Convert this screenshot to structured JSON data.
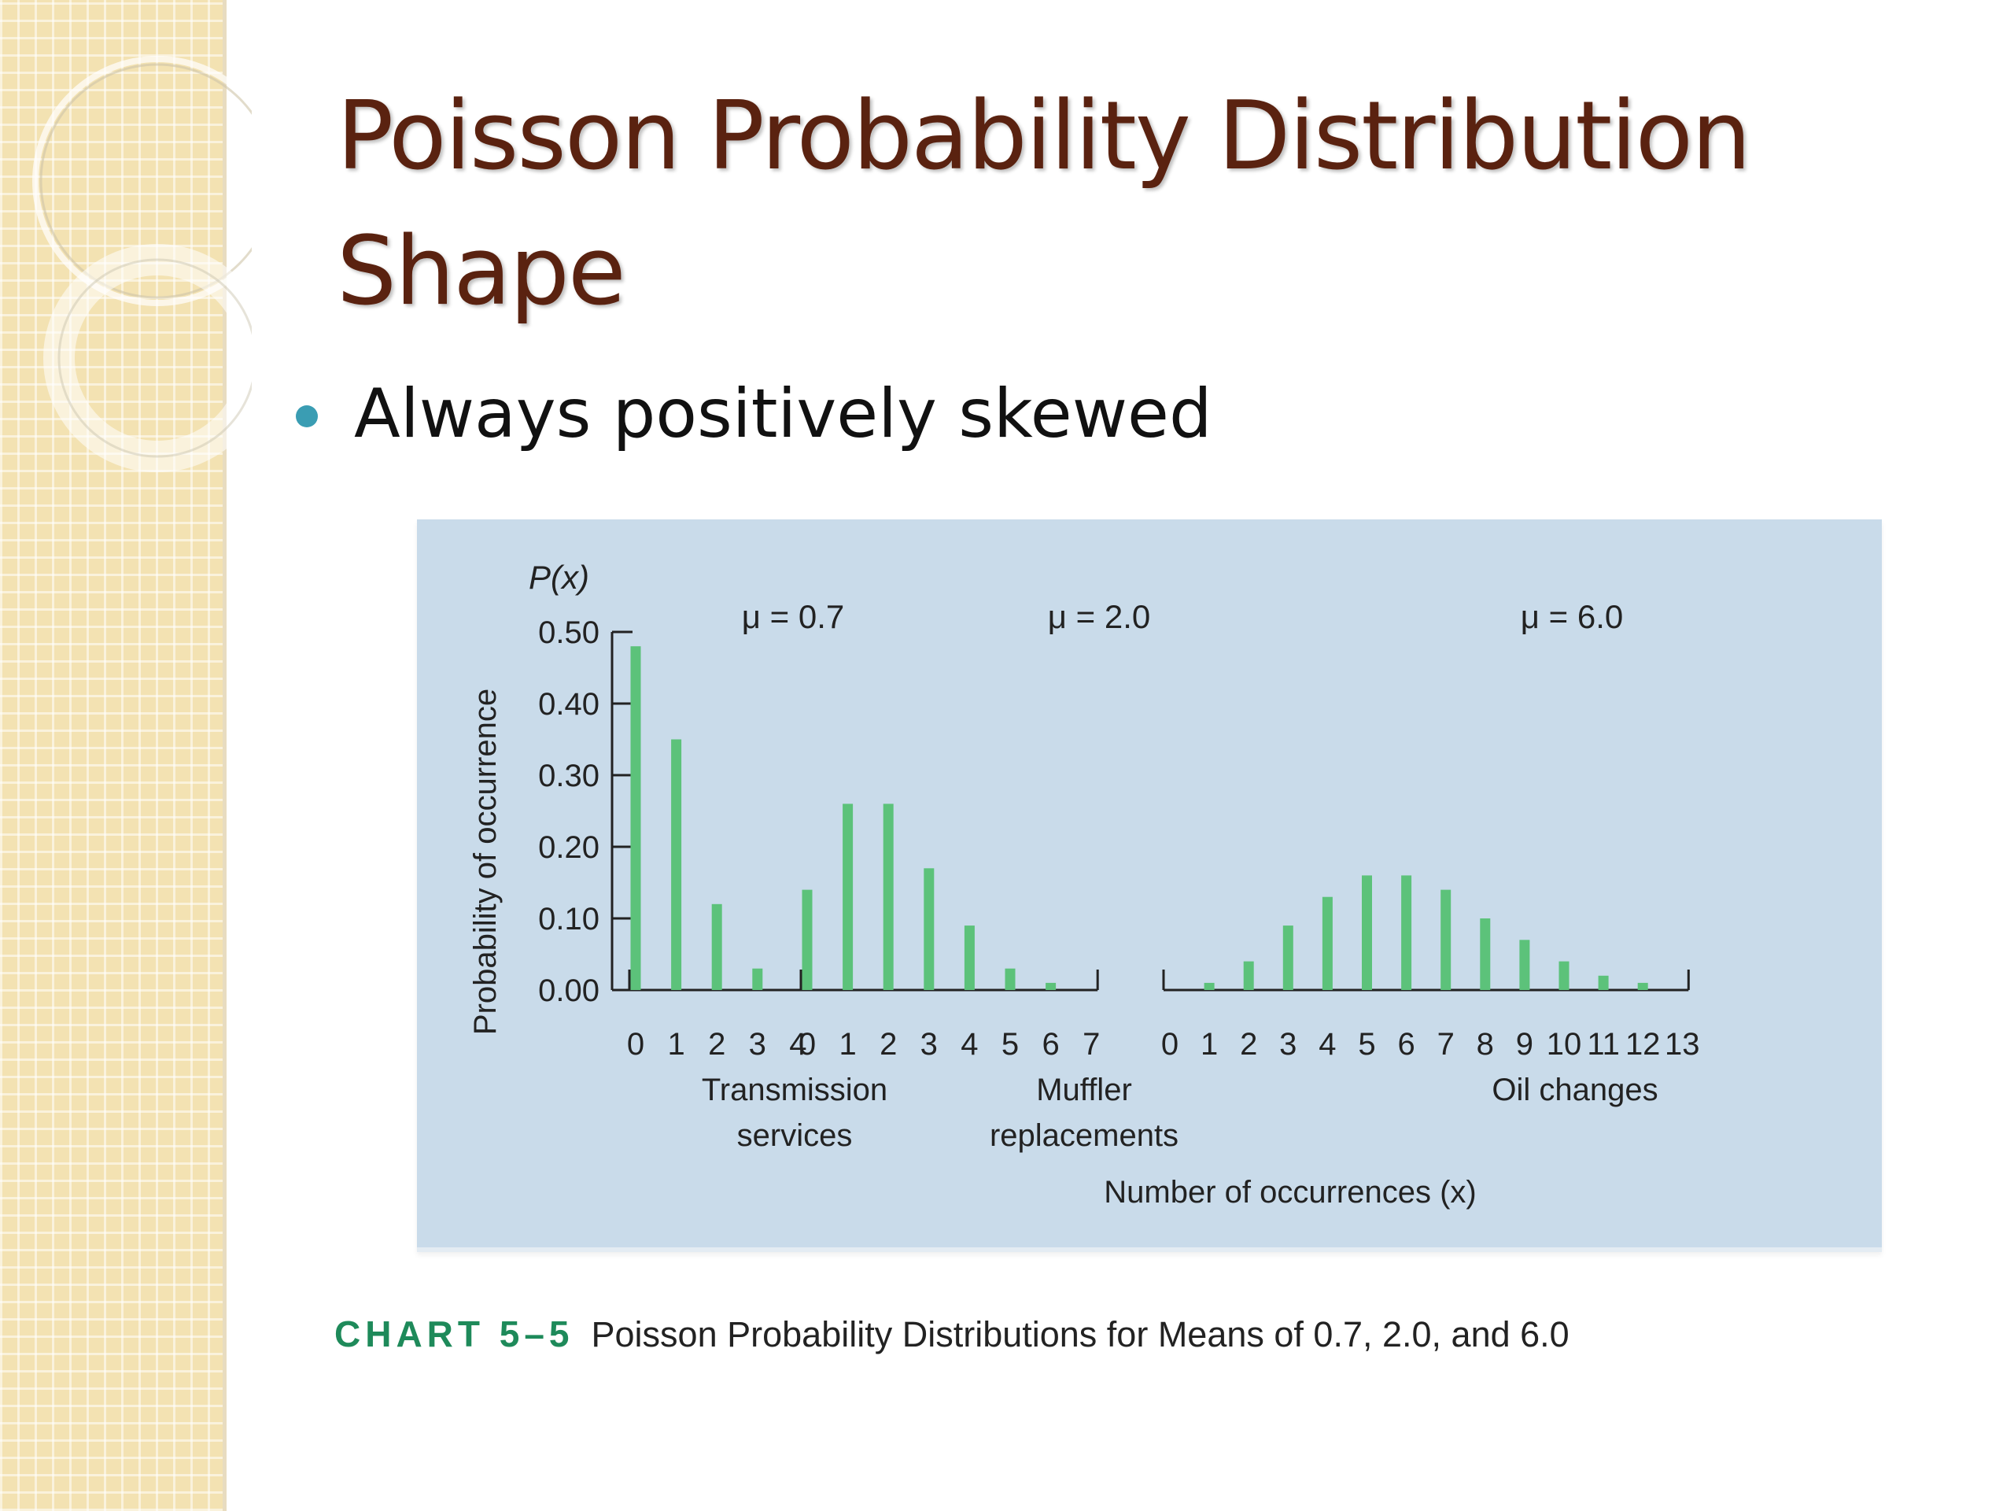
{
  "slide": {
    "title_line1": "Poisson Probability Distribution",
    "title_line2": "Shape",
    "bullet": "Always positively skewed",
    "caption_label": "CHART 5–5",
    "caption_text": "Poisson Probability Distributions for Means of 0.7, 2.0, and 6.0"
  },
  "colors": {
    "title": "#5a2210",
    "bullet_dot": "#3a9db3",
    "panel": "#c9dbea",
    "bar": "#5cc27a",
    "caption_label": "#1e8a5a"
  },
  "chart_data": {
    "type": "bar",
    "y_label_top": "P(x)",
    "ylabel": "Probability of occurrence",
    "xlabel": "Number of occurrences (x)",
    "ylim": [
      0,
      0.5
    ],
    "yticks": [
      "0.00",
      "0.10",
      "0.20",
      "0.30",
      "0.40",
      "0.50"
    ],
    "panels": [
      {
        "mean_label": "μ = 0.7",
        "name_lines": [
          "Transmission",
          "services"
        ],
        "categories": [
          "0",
          "1",
          "2",
          "3",
          "4"
        ],
        "values": [
          0.48,
          0.35,
          0.12,
          0.03,
          0.0
        ]
      },
      {
        "mean_label": "μ = 2.0",
        "name_lines": [
          "Muffler",
          "replacements"
        ],
        "categories": [
          "0",
          "1",
          "2",
          "3",
          "4",
          "5",
          "6",
          "7"
        ],
        "values": [
          0.14,
          0.26,
          0.26,
          0.17,
          0.09,
          0.03,
          0.01,
          0.0
        ]
      },
      {
        "mean_label": "μ = 6.0",
        "name_lines": [
          "Oil changes"
        ],
        "categories": [
          "0",
          "1",
          "2",
          "3",
          "4",
          "5",
          "6",
          "7",
          "8",
          "9",
          "10",
          "11",
          "12",
          "13"
        ],
        "values": [
          0.0,
          0.01,
          0.04,
          0.09,
          0.13,
          0.16,
          0.16,
          0.14,
          0.1,
          0.07,
          0.04,
          0.02,
          0.01,
          0.0
        ]
      }
    ]
  }
}
